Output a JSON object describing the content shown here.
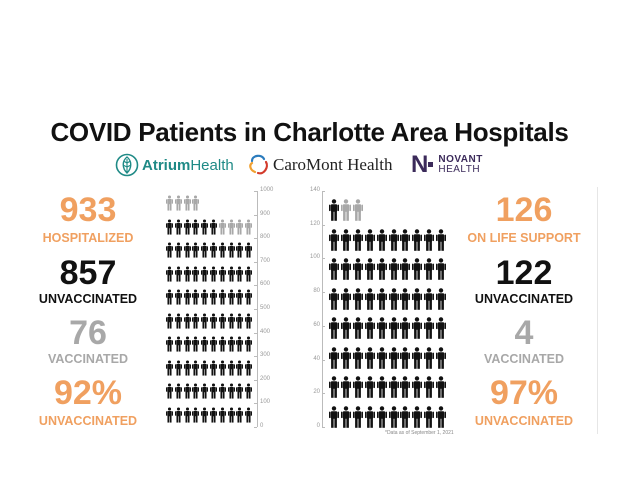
{
  "title": "COVID Patients in Charlotte Area Hospitals",
  "logos": {
    "atrium": {
      "name_bold": "Atrium",
      "name_rest": "Health"
    },
    "caromont": {
      "name": "CaroMont Health"
    },
    "novant": {
      "letter": "N",
      "line1": "NOVANT",
      "line2": "HEALTH"
    }
  },
  "colors": {
    "orange": "#f0a060",
    "black": "#111111",
    "gray": "#a8a8a8"
  },
  "left": {
    "hospitalized": {
      "value": "933",
      "label": "HOSPITALIZED"
    },
    "unvaccinated": {
      "value": "857",
      "label": "UNVACCINATED"
    },
    "vaccinated": {
      "value": "76",
      "label": "VACCINATED"
    },
    "percent": {
      "value": "92%",
      "label": "UNVACCINATED"
    },
    "axis_ticks": [
      "1000",
      "900",
      "800",
      "700",
      "600",
      "500",
      "400",
      "300",
      "200",
      "100",
      "0"
    ]
  },
  "right": {
    "life_support": {
      "value": "126",
      "label": "ON LIFE SUPPORT"
    },
    "unvaccinated": {
      "value": "122",
      "label": "UNVACCINATED"
    },
    "vaccinated": {
      "value": "4",
      "label": "VACCINATED"
    },
    "percent": {
      "value": "97%",
      "label": "UNVACCINATED"
    },
    "axis_ticks": [
      "140",
      "120",
      "100",
      "80",
      "60",
      "40",
      "20",
      "0"
    ],
    "footnote": "*Data as of September 1, 2021"
  }
}
